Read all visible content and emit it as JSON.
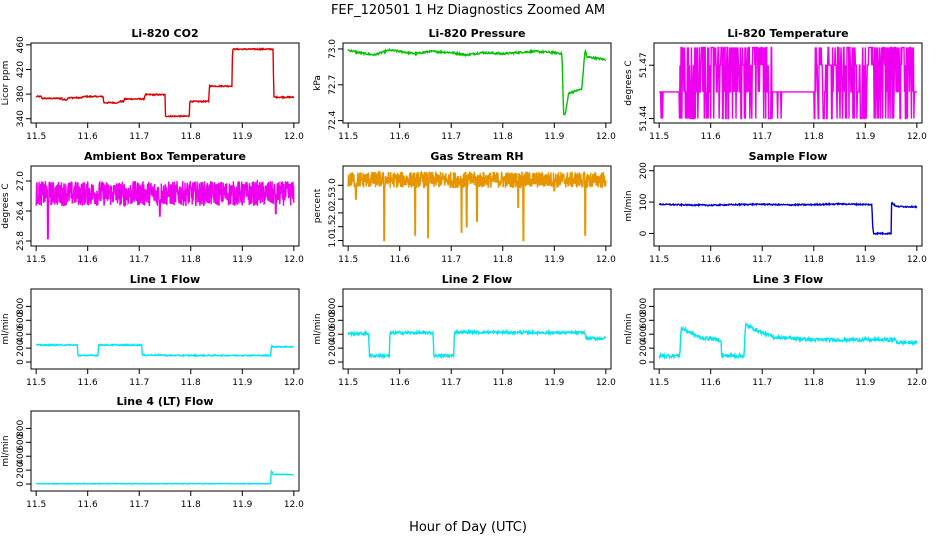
{
  "figure": {
    "title": "FEF_120501  1 Hz Diagnostics Zoomed AM",
    "xlabel": "Hour of Day (UTC)"
  },
  "chart_data": [
    {
      "type": "line",
      "title": "Li-820 CO2",
      "ylabel": "Licor ppm",
      "color": "#dd0000",
      "ylim": [
        333,
        463
      ],
      "yticks": [
        340,
        380,
        420,
        460
      ],
      "xlim": [
        11.49,
        12.01
      ],
      "xticks": [
        11.5,
        11.6,
        11.7,
        11.8,
        11.9,
        12.0
      ],
      "noise": 1,
      "x": [
        11.5,
        11.51,
        11.511,
        11.55,
        11.551,
        11.56,
        11.561,
        11.59,
        11.591,
        11.63,
        11.631,
        11.66,
        11.661,
        11.67,
        11.671,
        11.71,
        11.711,
        11.75,
        11.751,
        11.797,
        11.798,
        11.835,
        11.836,
        11.88,
        11.881,
        11.96,
        11.961,
        12.0
      ],
      "y": [
        376,
        376,
        373,
        373,
        371,
        371,
        374,
        374,
        376,
        376,
        366,
        366,
        368,
        368,
        372,
        372,
        379,
        379,
        344,
        344,
        368,
        368,
        393,
        393,
        453,
        453,
        375,
        375
      ]
    },
    {
      "type": "line",
      "title": "Li-820 Pressure",
      "ylabel": "kPa",
      "color": "#00c000",
      "ylim": [
        72.38,
        73.05
      ],
      "yticks": [
        72.4,
        72.7,
        73.0
      ],
      "ytick_labels": [
        "72.4",
        "72.7",
        "73.0"
      ],
      "xlim": [
        11.49,
        12.01
      ],
      "xticks": [
        11.5,
        11.6,
        11.7,
        11.8,
        11.9,
        12.0
      ],
      "noise": 0.008,
      "x": [
        11.5,
        11.52,
        11.55,
        11.58,
        11.6,
        11.63,
        11.66,
        11.7,
        11.73,
        11.76,
        11.8,
        11.83,
        11.86,
        11.9,
        11.915,
        11.918,
        11.921,
        11.928,
        11.95,
        11.953,
        11.96,
        11.963,
        11.97,
        12.0
      ],
      "y": [
        72.99,
        72.97,
        72.95,
        72.99,
        72.98,
        72.96,
        72.98,
        72.97,
        72.95,
        72.97,
        72.96,
        72.97,
        72.98,
        72.97,
        72.96,
        72.45,
        72.45,
        72.63,
        72.66,
        72.66,
        73.0,
        72.93,
        72.93,
        72.91
      ]
    },
    {
      "type": "line",
      "title": "Li-820 Temperature",
      "ylabel": "degrees C",
      "color": "#ee00ee",
      "ylim": [
        51.4375,
        51.4825
      ],
      "yticks": [
        51.44,
        51.47
      ],
      "ytick_labels": [
        "51.44",
        "51.47"
      ],
      "xlim": [
        11.49,
        12.01
      ],
      "xticks": [
        11.5,
        11.6,
        11.7,
        11.8,
        11.9,
        12.0
      ],
      "steps": [
        51.44,
        51.455,
        51.47,
        51.48
      ],
      "note": "rapid oscillation between 51.44 and 51.48 with baseline near 51.455"
    },
    {
      "type": "line",
      "title": "Ambient Box Temperature",
      "ylabel": "degrees C",
      "color": "#ee00ee",
      "ylim": [
        25.7,
        27.3
      ],
      "yticks": [
        25.8,
        26.4,
        27.0
      ],
      "ytick_labels": [
        "25.8",
        "26.4",
        "27.0"
      ],
      "xlim": [
        11.49,
        12.01
      ],
      "xticks": [
        11.5,
        11.6,
        11.7,
        11.8,
        11.9,
        12.0
      ],
      "base": 26.75,
      "amplitude": 0.25,
      "dips": [
        [
          11.523,
          25.85
        ],
        [
          11.74,
          26.3
        ],
        [
          11.965,
          26.35
        ]
      ]
    },
    {
      "type": "line",
      "title": "Gas Stream RH",
      "ylabel": "percent",
      "color": "#e69500",
      "ylim": [
        0.8,
        3.7
      ],
      "yticks": [
        1.0,
        1.5,
        2.0,
        2.5,
        3.0
      ],
      "ytick_labels": [
        "1.0",
        "1.5",
        "2.0",
        "2.5",
        "3.0"
      ],
      "xlim": [
        11.49,
        12.01
      ],
      "xticks": [
        11.5,
        11.6,
        11.7,
        11.8,
        11.9,
        12.0
      ],
      "base": 3.2,
      "amplitude": 0.3,
      "dips": [
        [
          11.515,
          2.5
        ],
        [
          11.57,
          1.0
        ],
        [
          11.63,
          1.2
        ],
        [
          11.655,
          1.1
        ],
        [
          11.72,
          1.3
        ],
        [
          11.73,
          1.5
        ],
        [
          11.75,
          1.7
        ],
        [
          11.84,
          1.0
        ],
        [
          11.83,
          2.2
        ],
        [
          11.96,
          1.2
        ],
        [
          11.9,
          2.8
        ]
      ]
    },
    {
      "type": "line",
      "title": "Sample Flow",
      "ylabel": "ml/min",
      "color": "#0000cc",
      "ylim": [
        -40,
        215
      ],
      "yticks": [
        0,
        100,
        200
      ],
      "xlim": [
        11.49,
        12.01
      ],
      "xticks": [
        11.5,
        11.6,
        11.7,
        11.8,
        11.9,
        12.0
      ],
      "noise": 2,
      "x": [
        11.5,
        11.55,
        11.6,
        11.65,
        11.7,
        11.75,
        11.8,
        11.85,
        11.913,
        11.914,
        11.916,
        11.95,
        11.951,
        11.955,
        11.96,
        12.0
      ],
      "y": [
        93,
        91,
        90,
        92,
        93,
        91,
        92,
        94,
        92,
        30,
        0,
        0,
        100,
        93,
        86,
        85
      ]
    },
    {
      "type": "line",
      "title": "Line 1 Flow",
      "ylabel": "ml/min",
      "color": "#00e5ee",
      "ylim": [
        -100,
        1050
      ],
      "yticks": [
        0,
        200,
        400,
        600,
        800
      ],
      "xlim": [
        11.49,
        12.01
      ],
      "xticks": [
        11.5,
        11.6,
        11.7,
        11.8,
        11.9,
        12.0
      ],
      "noise": 8,
      "x": [
        11.5,
        11.58,
        11.581,
        11.62,
        11.621,
        11.705,
        11.706,
        11.75,
        11.751,
        11.955,
        11.956,
        12.0
      ],
      "y": [
        245,
        245,
        95,
        95,
        245,
        245,
        100,
        100,
        95,
        95,
        220,
        220
      ]
    },
    {
      "type": "line",
      "title": "Line 2 Flow",
      "ylabel": "ml/min",
      "color": "#00e5ee",
      "ylim": [
        -100,
        1050
      ],
      "yticks": [
        0,
        200,
        400,
        600,
        800
      ],
      "xlim": [
        11.49,
        12.01
      ],
      "xticks": [
        11.5,
        11.6,
        11.7,
        11.8,
        11.9,
        12.0
      ],
      "noise": 20,
      "x": [
        11.5,
        11.54,
        11.541,
        11.58,
        11.581,
        11.665,
        11.666,
        11.705,
        11.706,
        11.96,
        11.961,
        12.0
      ],
      "y": [
        410,
        410,
        90,
        90,
        420,
        420,
        90,
        90,
        430,
        420,
        340,
        340
      ]
    },
    {
      "type": "line",
      "title": "Line 3 Flow",
      "ylabel": "ml/min",
      "color": "#00e5ee",
      "ylim": [
        -100,
        1050
      ],
      "yticks": [
        0,
        200,
        400,
        600,
        800
      ],
      "xlim": [
        11.49,
        12.01
      ],
      "xticks": [
        11.5,
        11.6,
        11.7,
        11.8,
        11.9,
        12.0
      ],
      "noise": 25,
      "x": [
        11.5,
        11.54,
        11.541,
        11.543,
        11.58,
        11.62,
        11.621,
        11.665,
        11.666,
        11.668,
        11.72,
        11.8,
        11.96,
        11.961,
        12.0
      ],
      "y": [
        90,
        90,
        300,
        490,
        350,
        320,
        90,
        90,
        340,
        530,
        360,
        320,
        320,
        280,
        280
      ]
    },
    {
      "type": "line",
      "title": "Line 4 (LT) Flow",
      "ylabel": "ml/min",
      "color": "#00e5ee",
      "ylim": [
        -100,
        1050
      ],
      "yticks": [
        0,
        200,
        400,
        600,
        800
      ],
      "xlim": [
        11.49,
        12.01
      ],
      "xticks": [
        11.5,
        11.6,
        11.7,
        11.8,
        11.9,
        12.0
      ],
      "noise": 4,
      "x": [
        11.5,
        11.955,
        11.956,
        11.96,
        12.0
      ],
      "y": [
        5,
        5,
        200,
        140,
        135
      ]
    }
  ]
}
